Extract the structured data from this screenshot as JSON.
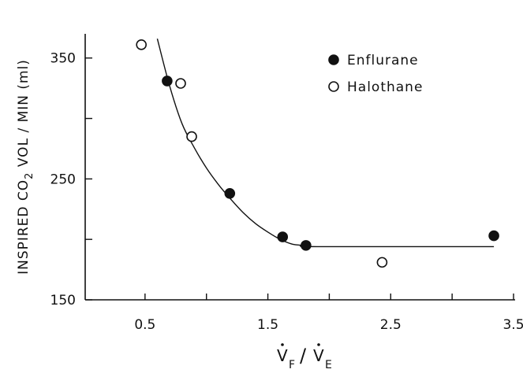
{
  "chart_data": {
    "type": "scatter",
    "ylabel_main": "INSPIRED CO",
    "ylabel_sub": "2",
    "ylabel_tail": " VOL / MIN  (ml)",
    "xlabel_v": "V",
    "xlabel_sub_f": "F",
    "xlabel_slash": "/",
    "xlabel_sub_e": "E",
    "xlim": [
      0,
      3.5
    ],
    "ylim": [
      150,
      370
    ],
    "x_ticks": [
      0.5,
      1.0,
      1.5,
      2.0,
      2.5,
      3.0,
      3.5
    ],
    "x_tick_labels": [
      "0.5",
      "",
      "1.5",
      "",
      "2.5",
      "",
      "3.5"
    ],
    "y_ticks": [
      150,
      200,
      250,
      300,
      350
    ],
    "y_tick_labels": [
      "150",
      "",
      "250",
      "",
      "350"
    ],
    "legend_position": "top-right",
    "series": [
      {
        "name": "Enflurane",
        "marker": "filled-circle",
        "x": [
          0.68,
          1.19,
          1.62,
          1.81,
          3.34
        ],
        "y": [
          331,
          238,
          202,
          195,
          203
        ]
      },
      {
        "name": "Halothane",
        "marker": "open-circle",
        "x": [
          0.47,
          0.79,
          0.88,
          2.43
        ],
        "y": [
          361,
          329,
          285,
          181
        ]
      }
    ],
    "fit_curve": {
      "x": [
        0.6,
        0.7,
        0.8,
        0.9,
        1.0,
        1.1,
        1.2,
        1.3,
        1.4,
        1.5,
        1.6,
        1.7,
        1.8,
        1.9,
        3.34
      ],
      "y": [
        366,
        327,
        296,
        276,
        259,
        245,
        233,
        222,
        213,
        206,
        200,
        196,
        195,
        194,
        194
      ]
    }
  }
}
